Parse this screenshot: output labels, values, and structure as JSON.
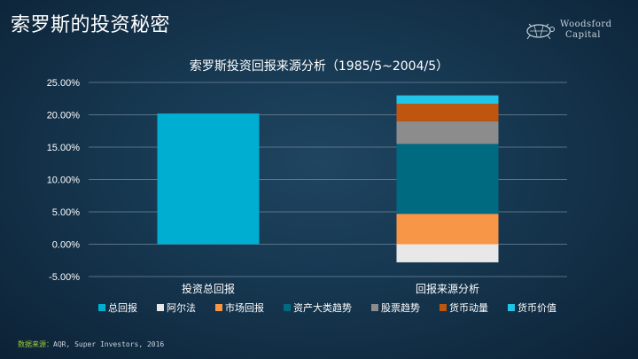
{
  "page": {
    "title": "索罗斯的投资秘密"
  },
  "logo": {
    "line1": "Woodsford",
    "line2": "Capital"
  },
  "source": {
    "label": "数据来源：",
    "text": "AQR, Super Investors, 2016"
  },
  "chart_data": {
    "type": "bar",
    "title": "索罗斯投资回报来源分析（1985/5~2004/5）",
    "categories": [
      "投资总回报",
      "回报来源分析"
    ],
    "ylim": [
      -5,
      25
    ],
    "yticks": [
      25,
      20,
      15,
      10,
      5,
      0,
      -5
    ],
    "ytick_labels": [
      "25.00%",
      "20.00%",
      "15.00%",
      "10.00%",
      "5.00%",
      "0.00%",
      "-5.00%"
    ],
    "grid": true,
    "legend_position": "bottom",
    "series": [
      {
        "name": "总回报",
        "color": "#00aed1",
        "values": [
          20.2,
          0
        ]
      },
      {
        "name": "阿尔法",
        "color": "#e8e8e8",
        "values": [
          0,
          -2.8
        ]
      },
      {
        "name": "市场回报",
        "color": "#f79646",
        "values": [
          0,
          4.7
        ]
      },
      {
        "name": "资产大类趋势",
        "color": "#006b80",
        "values": [
          0,
          10.8
        ]
      },
      {
        "name": "股票趋势",
        "color": "#8c8c8c",
        "values": [
          0,
          3.5
        ]
      },
      {
        "name": "货币动量",
        "color": "#c0560e",
        "values": [
          0,
          2.7
        ]
      },
      {
        "name": "货币价值",
        "color": "#21c3e6",
        "values": [
          0,
          1.3
        ]
      }
    ]
  }
}
